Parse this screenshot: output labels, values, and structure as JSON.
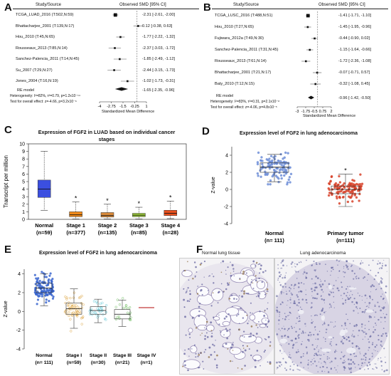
{
  "panels": {
    "A": "A",
    "B": "B",
    "C": "C",
    "D": "D",
    "E": "E",
    "F": "F"
  },
  "forestA": {
    "hdr_study": "Study/Source",
    "hdr_smd": "Observed SMD [95% CI]",
    "studies": [
      {
        "label": "TCGA_LUAD_2016 (T:502,N:59)",
        "ci": "-2.31 [-2.61, -2.00]",
        "est": -2.31,
        "lo": -2.61,
        "hi": -2.0
      },
      {
        "label": "Bhattacharjee_2001 (T:139,N:17)",
        "ci": "0.12 [-0.38, 0.63]",
        "est": 0.12,
        "lo": -0.38,
        "hi": 0.63
      },
      {
        "label": "Hou_2010 (T:45,N:65)",
        "ci": "-1.77 [-2.22, -1.32]",
        "est": -1.77,
        "lo": -2.22,
        "hi": -1.32
      },
      {
        "label": "Rousseaux_2013 (T:85,N:14)",
        "ci": "-2.37 [-3.03, -1.72]",
        "est": -2.37,
        "lo": -3.03,
        "hi": -1.72
      },
      {
        "label": "Sanchez-Palencia_2011 (T:14,N:45)",
        "ci": "-1.85 [-2.49, -1.12]",
        "est": -1.85,
        "lo": -2.49,
        "hi": -1.12
      },
      {
        "label": "Su_2007 (T:29,N:27)",
        "ci": "-2.44 [-3.15, -1.73]",
        "est": -2.44,
        "lo": -3.15,
        "hi": -1.73
      },
      {
        "label": "Jones_2004 (T:16,N:19)",
        "ci": "-1.02 [-1.73, -0.31]",
        "est": -1.02,
        "lo": -1.73,
        "hi": -0.31
      }
    ],
    "re_label": "RE model",
    "re_ci": "-1.65 [-2.35, -0.96]",
    "re_est": -1.65,
    "re_lo": -2.35,
    "re_hi": -0.96,
    "het": "Heterogeneity: I²=82%, τ²=0.79, p=1.2x10⁻¹⁴",
    "test": "Test for overall effect: z=-4.66, p=3.2x10⁻⁶",
    "ticks": [
      "-4",
      "-2.75",
      "-1.5",
      "-0.25",
      "1"
    ],
    "tick_vals": [
      -4,
      -2.75,
      -1.5,
      -0.25,
      1
    ],
    "xlabel": "Standardized Mean Difference"
  },
  "forestB": {
    "hdr_study": "Study/Source",
    "hdr_smd": "Observed SMD [95% CI]",
    "studies": [
      {
        "label": "TCGA_LUSC_2016 (T:488,N:51)",
        "ci": "-1.41 [-1.71, -1.10]",
        "est": -1.41,
        "lo": -1.71,
        "hi": -1.1
      },
      {
        "label": "Hou_2010 (T:27,N:65)",
        "ci": "-1.45 [-1.95, -0.96]",
        "est": -1.45,
        "lo": -1.95,
        "hi": -0.96
      },
      {
        "label": "Fujiwara_2012a (T:49,N:30)",
        "ci": "-0.44 [-0.90, 0.02]",
        "est": -0.44,
        "lo": -0.9,
        "hi": 0.02
      },
      {
        "label": "Sanchez-Palencia_2011 (T:31,N:45)",
        "ci": "-1.15 [-1.64, -0.66]",
        "est": -1.15,
        "lo": -1.64,
        "hi": -0.66
      },
      {
        "label": "Rousseaux_2013 (T:61,N:14)",
        "ci": "-1.72 [-2.36, -1.08]",
        "est": -1.72,
        "lo": -2.36,
        "hi": -1.08
      },
      {
        "label": "Bhattacharjee_2001 (T:21,N:17)",
        "ci": "-0.07 [-0.71, 0.57]",
        "est": -0.07,
        "lo": -0.71,
        "hi": 0.57
      },
      {
        "label": "Baty_2010 (T:12,N:15)",
        "ci": "-0.32 [-1.08, 0.45]",
        "est": -0.32,
        "lo": -1.08,
        "hi": 0.45
      }
    ],
    "re_label": "RE model",
    "re_ci": "-0.96 [-1.42, -0.50]",
    "re_est": -0.96,
    "re_lo": -1.42,
    "re_hi": -0.5,
    "het": "Heterogeneity: I²=83%, τ²=0.31, p=2.1x10⁻⁸",
    "test": "Test for overall effect: z=-4.06, p=4.8x10⁻⁵",
    "ticks": [
      "-3",
      "-1.75",
      "-0.5",
      "0.75",
      "2"
    ],
    "tick_vals": [
      -3,
      -1.75,
      -0.5,
      0.75,
      2
    ],
    "xlabel": "Standardized Mean Difference"
  },
  "chart_data": [
    {
      "type": "box",
      "title": "Expression of FGF2 in LUAD based on individual cancer stages",
      "title_line1": "Expression of FGF2 in LUAD based on individual cancer",
      "title_line2": "stages",
      "ylabel": "Transcript per million",
      "ylim": [
        0,
        10
      ],
      "yticks": [
        "0",
        "1",
        "2",
        "3",
        "4",
        "5",
        "6",
        "7",
        "8",
        "9",
        "10"
      ],
      "categories": [
        "Normal",
        "Stage 1",
        "Stage 2",
        "Stage 3",
        "Stage 4"
      ],
      "counts": [
        "(n=59)",
        "(n=377)",
        "(n=135)",
        "(n=85)",
        "(n=28)"
      ],
      "colors": [
        "#3b4fe0",
        "#f08a1a",
        "#d98a3a",
        "#9dcc3a",
        "#e8501e"
      ],
      "boxes": [
        {
          "min": 1.2,
          "q1": 2.9,
          "med": 4.0,
          "q3": 5.2,
          "max": 9.0
        },
        {
          "min": 0.05,
          "q1": 0.35,
          "med": 0.6,
          "q3": 1.0,
          "max": 2.3
        },
        {
          "min": 0.05,
          "q1": 0.3,
          "med": 0.5,
          "q3": 0.9,
          "max": 2.0
        },
        {
          "min": 0.05,
          "q1": 0.35,
          "med": 0.55,
          "q3": 0.8,
          "max": 1.6
        },
        {
          "min": 0.1,
          "q1": 0.5,
          "med": 0.8,
          "q3": 1.2,
          "max": 2.4
        }
      ],
      "star": "*"
    },
    {
      "type": "box-scatter",
      "title": "Expression level of FGF2  in lung adenocarcinoma",
      "ylabel": "Z-value",
      "ylim": [
        -4,
        5
      ],
      "yticks": [
        "-4",
        "-2",
        "0",
        "2",
        "4"
      ],
      "categories": [
        "Normal",
        "Primary tumor"
      ],
      "counts": [
        "(n= 111)",
        "(n=111)"
      ],
      "colors": [
        "#6f8fd8",
        "#d8442c"
      ],
      "boxes": [
        {
          "min": 0.9,
          "q1": 2.0,
          "med": 2.6,
          "q3": 3.1,
          "max": 4.1
        },
        {
          "min": -2.0,
          "q1": -0.5,
          "med": 0.0,
          "q3": 0.4,
          "max": 1.8
        }
      ],
      "star": "*"
    },
    {
      "type": "box-scatter",
      "title": "Expression level of FGF2  in lung adenocarcinoma",
      "ylabel": "Z-value",
      "ylim": [
        -4,
        4.5
      ],
      "yticks": [
        "-4",
        "-2",
        "0",
        "2",
        "4"
      ],
      "categories": [
        "Normal",
        "Stage I",
        "Stage II",
        "Stage III",
        "Stage IV"
      ],
      "counts": [
        "(n= 111)",
        "(n=59)",
        "(n=30)",
        "(n=21)",
        "(n=1)"
      ],
      "colors": [
        "#3a66cf",
        "#d89a2c",
        "#4ec2d2",
        "#5ab34a",
        "#c23a3a"
      ],
      "boxes": [
        {
          "min": 0.6,
          "q1": 2.0,
          "med": 2.5,
          "q3": 3.0,
          "max": 4.0
        },
        {
          "min": -1.8,
          "q1": -0.3,
          "med": 0.3,
          "q3": 0.9,
          "max": 2.4
        },
        {
          "min": -1.2,
          "q1": -0.3,
          "med": 0.1,
          "q3": 0.5,
          "max": 1.3
        },
        {
          "min": -1.6,
          "q1": -0.8,
          "med": -0.3,
          "q3": 0.2,
          "max": 1.2
        },
        {
          "min": 0.4,
          "q1": 0.4,
          "med": 0.4,
          "q3": 0.4,
          "max": 0.4
        }
      ]
    }
  ],
  "panelF": {
    "left_label": "Normal lung tissue",
    "right_label": "Lung adenocarcinoma"
  }
}
